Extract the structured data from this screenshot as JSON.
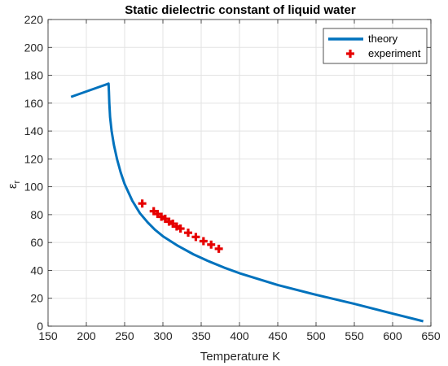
{
  "chart_data": {
    "type": "line",
    "title": "Static dielectric constant of liquid water",
    "xlabel": "Temperature K",
    "ylabel": "ε",
    "ylabel_subscript": "r",
    "xlim": [
      150,
      650
    ],
    "ylim": [
      0,
      220
    ],
    "xticks": [
      150,
      200,
      250,
      300,
      350,
      400,
      450,
      500,
      550,
      600,
      650
    ],
    "yticks": [
      0,
      20,
      40,
      60,
      80,
      100,
      120,
      140,
      160,
      180,
      200,
      220
    ],
    "grid": true,
    "legend_position": "top-right",
    "series": [
      {
        "name": "theory",
        "kind": "line",
        "color": "#0072BD",
        "points": [
          [
            180,
            164.5
          ],
          [
            229,
            174
          ],
          [
            229.5,
            168
          ],
          [
            230,
            160
          ],
          [
            231,
            150
          ],
          [
            233,
            140
          ],
          [
            236,
            130
          ],
          [
            240,
            120
          ],
          [
            245,
            110
          ],
          [
            250,
            102
          ],
          [
            260,
            90
          ],
          [
            270,
            81
          ],
          [
            280,
            74.5
          ],
          [
            290,
            69
          ],
          [
            300,
            64.5
          ],
          [
            320,
            57.5
          ],
          [
            340,
            51.5
          ],
          [
            360,
            46.5
          ],
          [
            380,
            42
          ],
          [
            400,
            38
          ],
          [
            450,
            29.5
          ],
          [
            500,
            22.5
          ],
          [
            550,
            16
          ],
          [
            600,
            9
          ],
          [
            640,
            3.5
          ]
        ]
      },
      {
        "name": "experiment",
        "kind": "marker",
        "color": "#E60000",
        "points": [
          [
            273,
            88
          ],
          [
            288,
            82.5
          ],
          [
            293,
            80.5
          ],
          [
            298,
            78.5
          ],
          [
            303,
            77
          ],
          [
            308,
            75
          ],
          [
            313,
            73.5
          ],
          [
            318,
            71.5
          ],
          [
            323,
            70
          ],
          [
            333,
            67
          ],
          [
            343,
            64
          ],
          [
            353,
            61
          ],
          [
            363,
            58.5
          ],
          [
            373,
            55.5
          ]
        ]
      }
    ]
  }
}
